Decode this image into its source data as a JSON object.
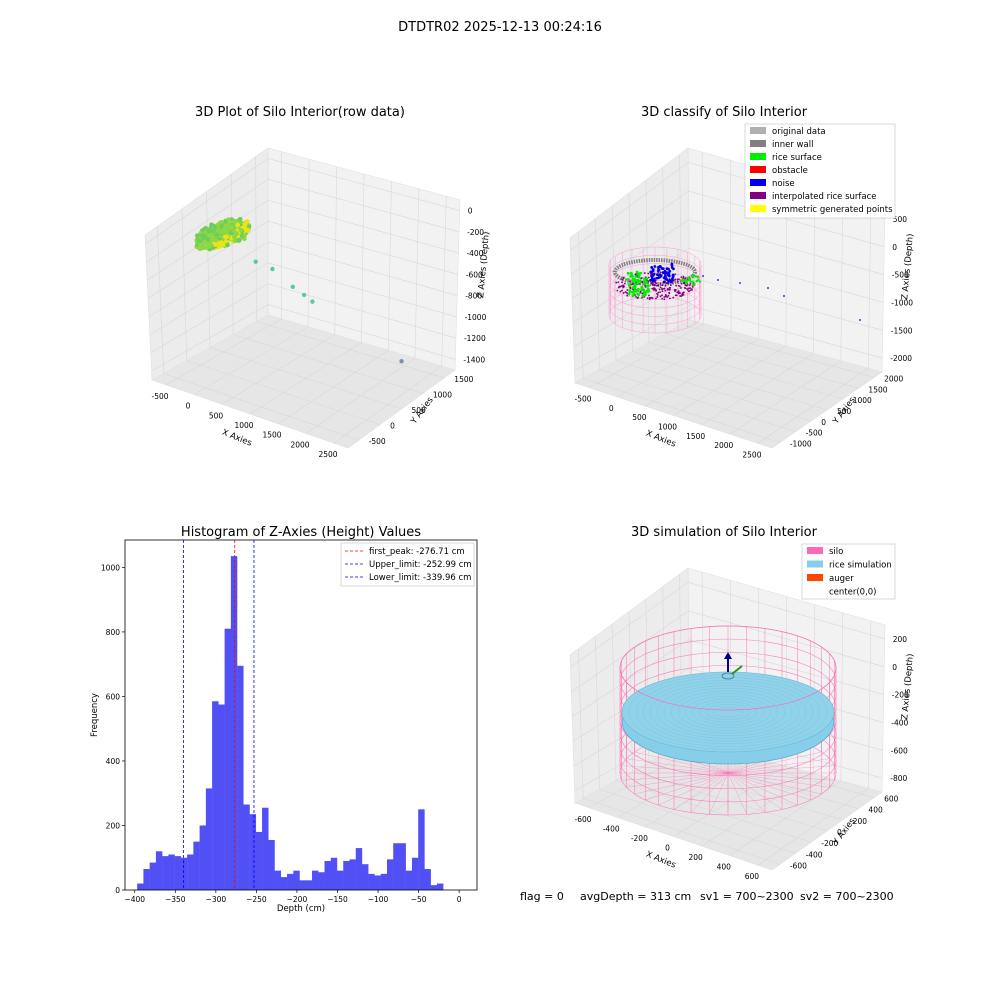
{
  "suptitle": "DTDTR02 2025-12-13 00:24:16",
  "footer": {
    "flag": "flag = 0",
    "avg_depth": "avgDepth = 313 cm",
    "sv1": "sv1 = 700~2300",
    "sv2": "sv2 = 700~2300"
  },
  "colors": {
    "histogram_bar": "#5050f5",
    "first_peak_line": "#ff0000",
    "limit_line": "#0000ff",
    "original_data": "#b0b0b0",
    "inner_wall": "#808080",
    "rice_surface": "#00ee00",
    "obstacle": "#ff0000",
    "noise": "#0000ee",
    "interpolated_rice_surface": "#800080",
    "symmetric_generated_points": "#ffff00",
    "silo": "#ff69b4",
    "rice_simulation": "#87ceeb",
    "auger": "#ff4500",
    "pane": "#f2f2f2"
  },
  "chart_data": [
    {
      "type": "scatter",
      "subtype": "3d",
      "title": "3D Plot of Silo Interior(row data)",
      "xlabel": "X Axies",
      "ylabel": "Y Axies",
      "zlabel": "Z Axies (Depth)",
      "xticks": [
        "-500",
        "0",
        "500",
        "1000",
        "1500",
        "2000",
        "2500"
      ],
      "yticks": [
        "-500",
        "0",
        "500",
        "1000",
        "1500"
      ],
      "zticks": [
        "0",
        "-200",
        "-400",
        "-600",
        "-800",
        "-1000",
        "-1200",
        "-1400"
      ],
      "xlim": [
        -600,
        2600
      ],
      "ylim": [
        -700,
        1700
      ],
      "zlim": [
        -1600,
        50
      ],
      "colormap": "viridis-like (yellow-green surface)",
      "grid": true,
      "outlier_points": [
        {
          "x": 400,
          "y": 200,
          "z": -520
        },
        {
          "x": 600,
          "y": 300,
          "z": -600
        },
        {
          "x": 900,
          "y": 350,
          "z": -750
        },
        {
          "x": 1050,
          "y": 400,
          "z": -820
        },
        {
          "x": 1150,
          "y": 450,
          "z": -880
        },
        {
          "x": 2300,
          "y": 900,
          "z": -1350
        }
      ]
    },
    {
      "type": "scatter",
      "subtype": "3d",
      "title": "3D classify of Silo Interior",
      "xlabel": "X Axies",
      "ylabel": "Y Axies",
      "zlabel": "Z Axies (Depth)",
      "xticks": [
        "-500",
        "0",
        "500",
        "1000",
        "1500",
        "2000",
        "2500"
      ],
      "yticks": [
        "-1000",
        "-500",
        "0",
        "500",
        "1000",
        "1500",
        "2000"
      ],
      "zticks": [
        "500",
        "0",
        "-500",
        "-1000",
        "-1500",
        "-2000"
      ],
      "legend": [
        "original data",
        "inner wall",
        "rice surface",
        "obstacle",
        "noise",
        "interpolated rice surface",
        "symmetric generated points"
      ],
      "legend_position": "upper-right",
      "grid": true
    },
    {
      "type": "bar",
      "subtype": "histogram",
      "title": "Histogram of Z-Axies (Height) Values",
      "xlabel": "Depth (cm)",
      "ylabel": "Frequency",
      "xlim": [
        -412,
        22
      ],
      "ylim": [
        0,
        1085
      ],
      "xticks": [
        -400,
        -350,
        -300,
        -250,
        -200,
        -150,
        -100,
        -50,
        0
      ],
      "yticks": [
        0,
        200,
        400,
        600,
        800,
        1000
      ],
      "bin_start": -397,
      "bin_width": 7.7,
      "values": [
        20,
        65,
        85,
        120,
        105,
        110,
        105,
        100,
        110,
        150,
        200,
        315,
        585,
        575,
        810,
        1035,
        695,
        265,
        235,
        180,
        255,
        155,
        60,
        40,
        50,
        60,
        30,
        30,
        60,
        55,
        90,
        100,
        60,
        90,
        95,
        130,
        80,
        50,
        45,
        50,
        95,
        145,
        145,
        60,
        100,
        250,
        65,
        15,
        20
      ],
      "vlines": [
        {
          "label": "first_peak: -276.71 cm",
          "x": -276.71,
          "color": "#ff0000"
        },
        {
          "label": "Upper_limit: -252.99 cm",
          "x": -252.99,
          "color": "#0000ff"
        },
        {
          "label": "Lower_limit: -339.96 cm",
          "x": -339.96,
          "color": "#0000ff"
        }
      ],
      "legend_position": "upper-right"
    },
    {
      "type": "scatter",
      "subtype": "3d",
      "title": "3D simulation of Silo Interior",
      "xlabel": "X Axies",
      "ylabel": "Y Axies",
      "zlabel": "Z Axies (Depth)",
      "xticks": [
        "-600",
        "-400",
        "-200",
        "0",
        "200",
        "400",
        "600"
      ],
      "yticks": [
        "-600",
        "-400",
        "-200",
        "0",
        "200",
        "400",
        "600"
      ],
      "zticks": [
        "200",
        "0",
        "-200",
        "-400",
        "-600",
        "-800"
      ],
      "legend": [
        "silo",
        "rice simulation",
        "auger",
        "center(0,0)"
      ],
      "legend_position": "upper-right",
      "grid": true
    }
  ]
}
